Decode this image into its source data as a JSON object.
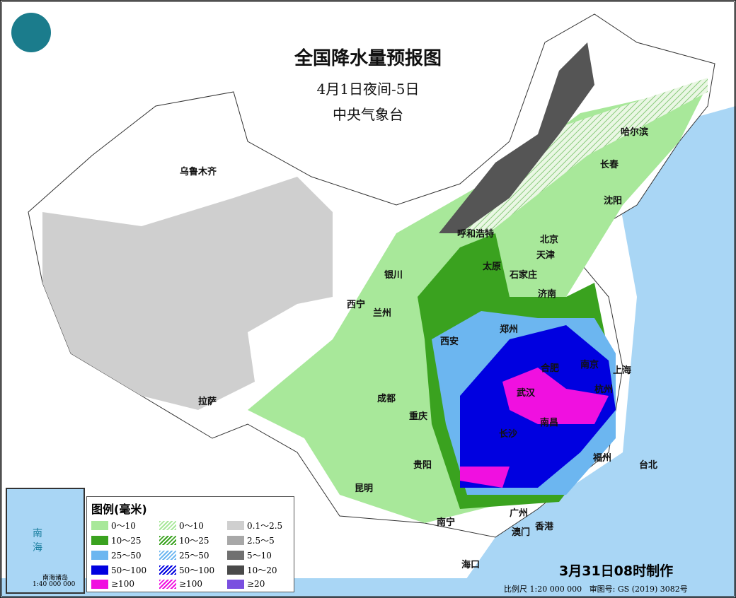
{
  "title": "全国降水量预报图",
  "subtitle": "4月1日夜间-5日",
  "agency": "中央气象台",
  "legend": {
    "title": "图例(毫米)",
    "items": [
      {
        "label": "0～10",
        "color": "#a8e89a",
        "hatch": false
      },
      {
        "label": "0～10",
        "color": "#a8e89a",
        "hatch": true
      },
      {
        "label": "0.1～2.5",
        "color": "#cfcfcf",
        "hatch": false
      },
      {
        "label": "10～25",
        "color": "#3aa21f",
        "hatch": false
      },
      {
        "label": "10～25",
        "color": "#3aa21f",
        "hatch": true
      },
      {
        "label": "2.5～5",
        "color": "#a8a8a8",
        "hatch": false
      },
      {
        "label": "25～50",
        "color": "#6cb6f0",
        "hatch": false
      },
      {
        "label": "25～50",
        "color": "#6cb6f0",
        "hatch": true
      },
      {
        "label": "5～10",
        "color": "#707070",
        "hatch": false
      },
      {
        "label": "50～100",
        "color": "#0000e0",
        "hatch": false
      },
      {
        "label": "50～100",
        "color": "#0000e0",
        "hatch": true
      },
      {
        "label": "10～20",
        "color": "#4a4a4a",
        "hatch": false
      },
      {
        "label": "≥100",
        "color": "#f010e0",
        "hatch": false
      },
      {
        "label": "≥100",
        "color": "#f010e0",
        "hatch": true
      },
      {
        "label": "≥20",
        "color": "#7a4fe0",
        "hatch": false
      }
    ]
  },
  "cities": [
    "乌鲁木齐",
    "哈尔滨",
    "长春",
    "沈阳",
    "呼和浩特",
    "北京",
    "天津",
    "银川",
    "太原",
    "石家庄",
    "济南",
    "西宁",
    "兰州",
    "郑州",
    "西安",
    "合肥",
    "南京",
    "上海",
    "武汉",
    "杭州",
    "成都",
    "重庆",
    "长沙",
    "南昌",
    "拉萨",
    "福州",
    "台北",
    "贵阳",
    "昆明",
    "南宁",
    "广州",
    "澳门",
    "香港",
    "海口"
  ],
  "inset": {
    "sea": "南 海",
    "islands": "南海诸岛",
    "scale": "1:40 000 000"
  },
  "issued": "3月31日08时制作",
  "scale_text": "比例尺 1:20 000 000",
  "map_number": "审图号: GS (2019) 3082号"
}
